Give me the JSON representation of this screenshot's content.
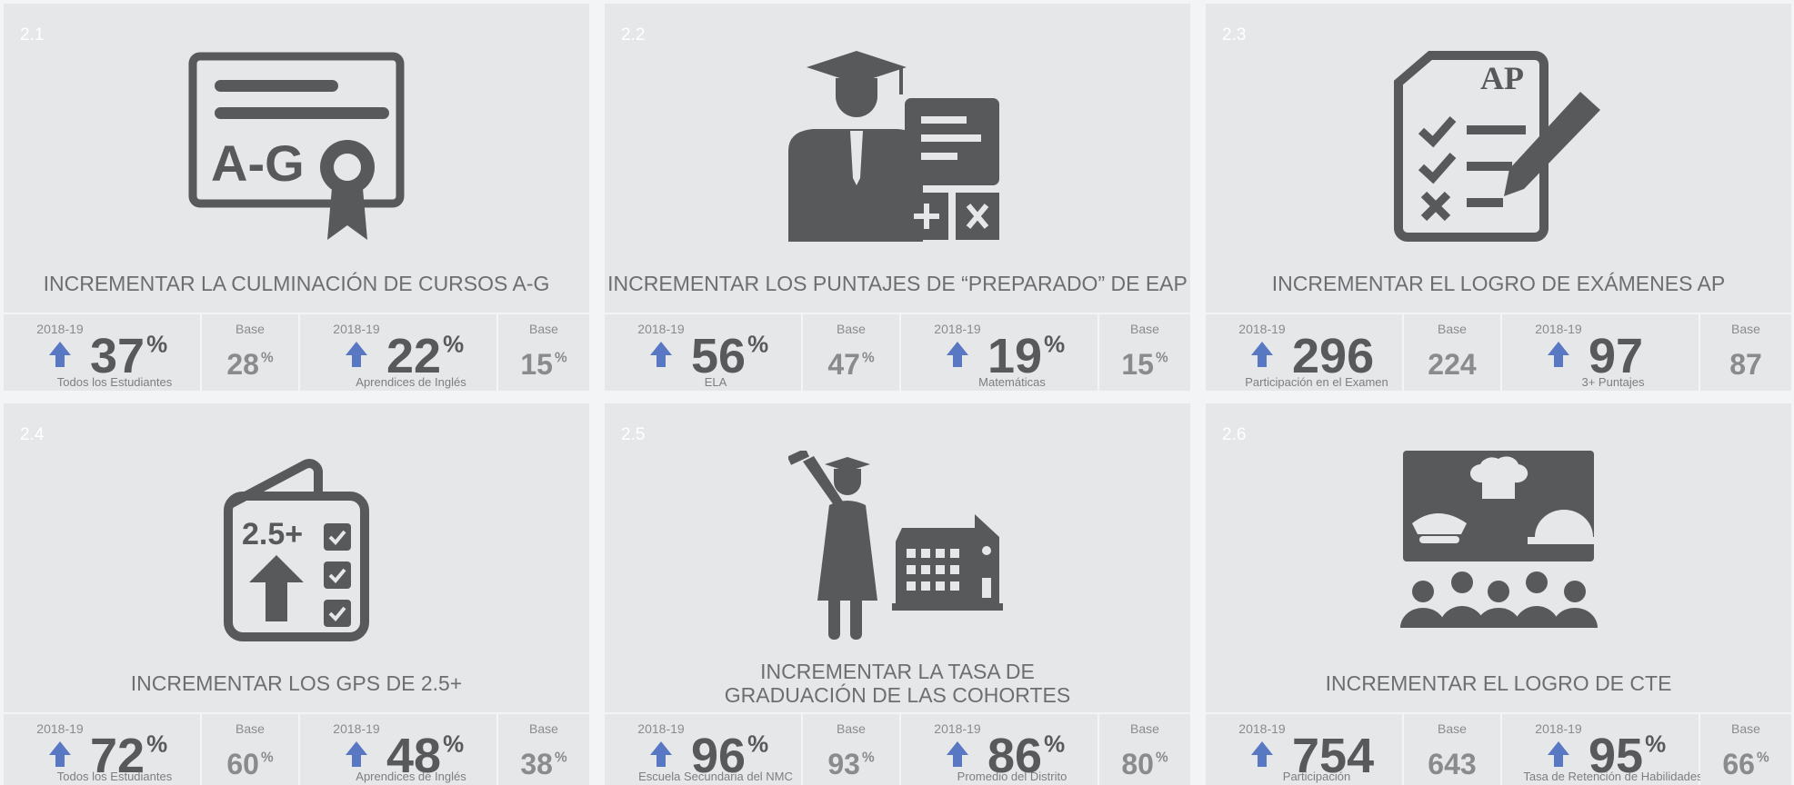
{
  "cards": [
    {
      "number": "2.1",
      "title": [
        "INCREMENTAR LA CULMINACIÓN DE CURSOS A-G"
      ],
      "icon_text": "A-G",
      "metrics": [
        {
          "year": "2018-19",
          "value": 37,
          "unit": "%",
          "label": "Todos los Estudiantes",
          "base_label": "Base",
          "base": 28,
          "base_unit": "%"
        },
        {
          "year": "2018-19",
          "value": 22,
          "unit": "%",
          "label": "Aprendices de Inglés",
          "base_label": "Base",
          "base": 15,
          "base_unit": "%"
        }
      ]
    },
    {
      "number": "2.2",
      "title": [
        "INCREMENTAR LOS PUNTAJES DE “PREPARADO” DE EAP"
      ],
      "metrics": [
        {
          "year": "2018-19",
          "value": 56,
          "unit": "%",
          "label": "ELA",
          "base_label": "Base",
          "base": 47,
          "base_unit": "%"
        },
        {
          "year": "2018-19",
          "value": 19,
          "unit": "%",
          "label": "Matemáticas",
          "base_label": "Base",
          "base": 15,
          "base_unit": "%"
        }
      ]
    },
    {
      "number": "2.3",
      "title": [
        "INCREMENTAR EL LOGRO DE EXÁMENES AP"
      ],
      "icon_text": "AP",
      "metrics": [
        {
          "year": "2018-19",
          "value": 296,
          "label": "Participación en el Examen",
          "base_label": "Base",
          "base": 224
        },
        {
          "year": "2018-19",
          "value": 97,
          "label": "3+ Puntajes",
          "base_label": "Base",
          "base": 87
        }
      ]
    },
    {
      "number": "2.4",
      "title": [
        "INCREMENTAR LOS GPS DE 2.5+"
      ],
      "icon_text": "2.5+",
      "metrics": [
        {
          "year": "2018-19",
          "value": 72,
          "unit": "%",
          "label": "Todos los Estudiantes",
          "base_label": "Base",
          "base": 60,
          "base_unit": "%"
        },
        {
          "year": "2018-19",
          "value": 48,
          "unit": "%",
          "label": "Aprendices de Inglés",
          "base_label": "Base",
          "base": 38,
          "base_unit": "%"
        }
      ]
    },
    {
      "number": "2.5",
      "title": [
        "INCREMENTAR LA TASA DE",
        "GRADUACIÓN DE LAS COHORTES"
      ],
      "metrics": [
        {
          "year": "2018-19",
          "value": 96,
          "unit": "%",
          "label": "Escuela Secundaria del NMC",
          "base_label": "Base",
          "base": 93,
          "base_unit": "%"
        },
        {
          "year": "2018-19",
          "value": 86,
          "unit": "%",
          "label": "Promedio del Distrito",
          "base_label": "Base",
          "base": 80,
          "base_unit": "%"
        }
      ]
    },
    {
      "number": "2.6",
      "title": [
        "INCREMENTAR EL LOGRO DE CTE"
      ],
      "metrics": [
        {
          "year": "2018-19",
          "value": 754,
          "label": "Participación",
          "base_label": "Base",
          "base": 643
        },
        {
          "year": "2018-19",
          "value": 95,
          "unit": "%",
          "label": "Tasa de Retención de Habilidades",
          "base_label": "Base",
          "base": 66,
          "base_unit": "%"
        }
      ]
    }
  ]
}
